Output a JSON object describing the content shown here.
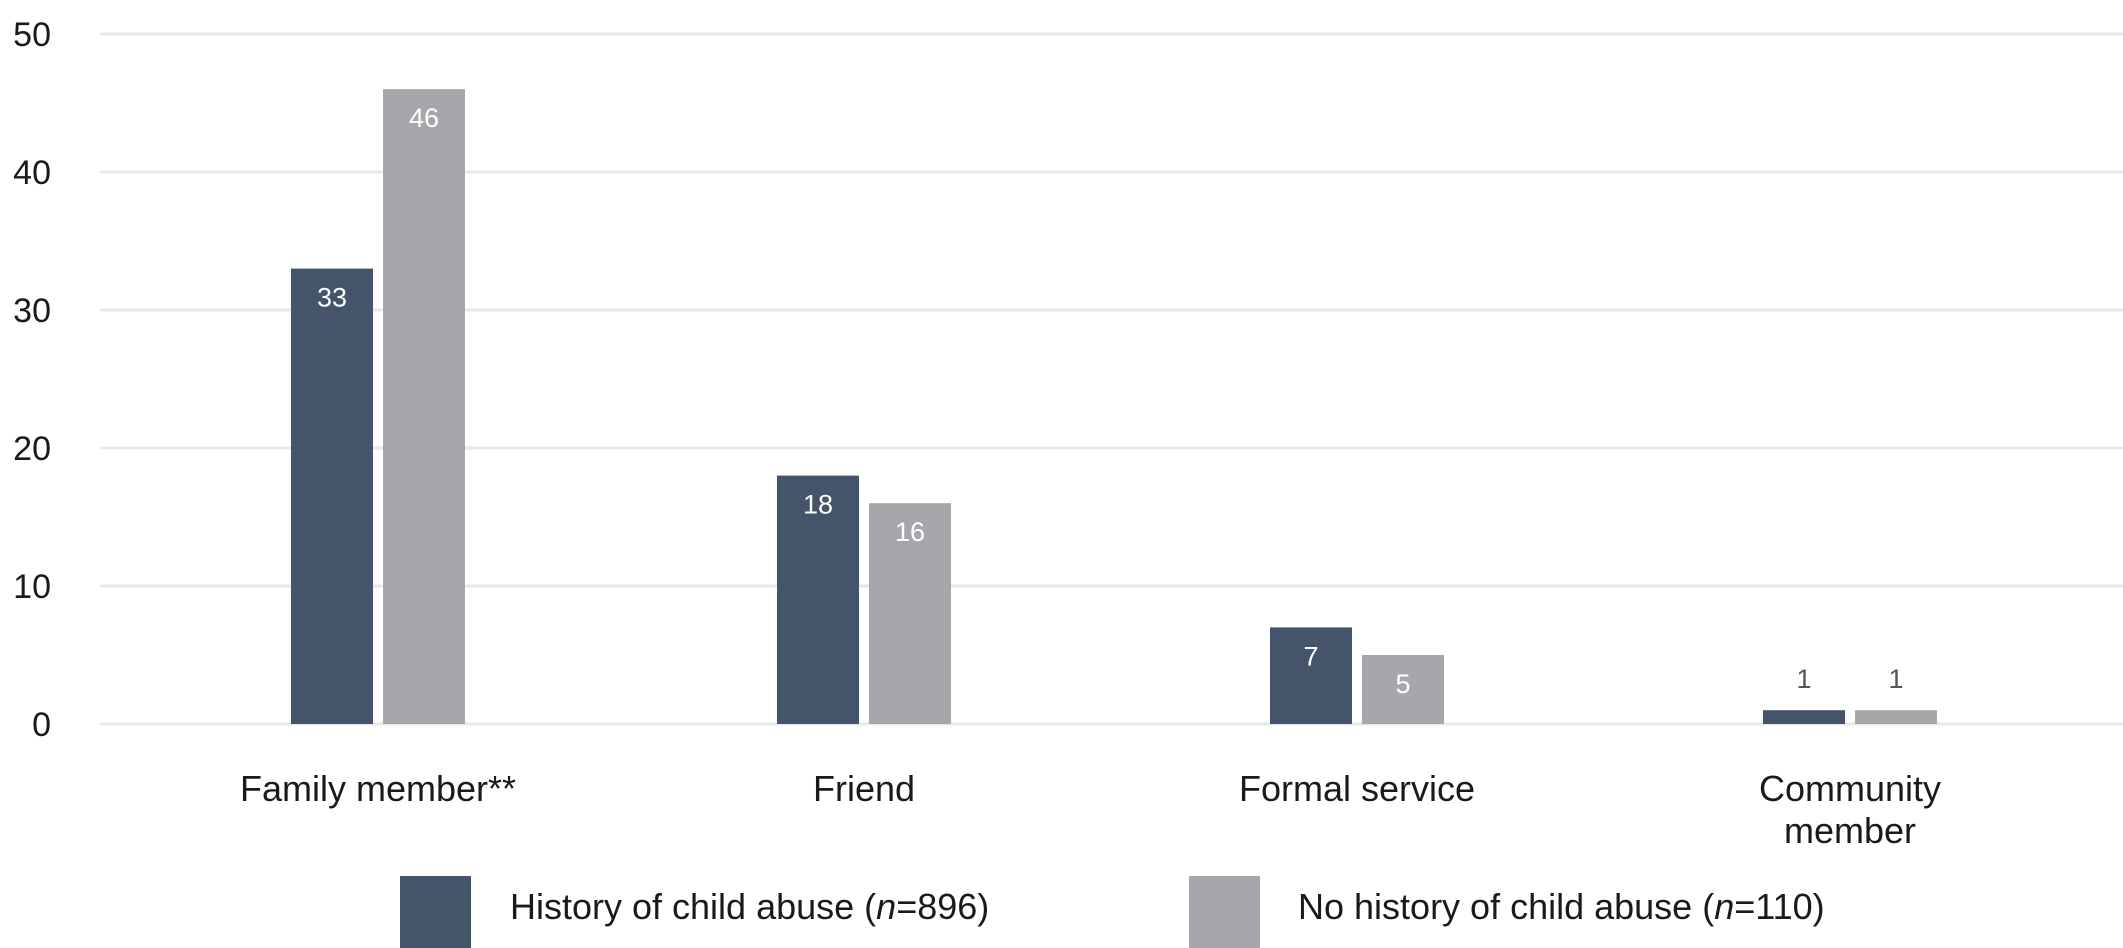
{
  "chart_data": {
    "type": "bar",
    "categories": [
      [
        "Family member**"
      ],
      [
        "Friend"
      ],
      [
        "Formal service"
      ],
      [
        "Community",
        "member"
      ]
    ],
    "series": [
      {
        "name": "History of child abuse (n=896)",
        "legend": {
          "prefix": "History of child abuse (",
          "italic": "n",
          "suffix": "=896)"
        },
        "color": "#44546a",
        "label_color_inside": "#ffffff",
        "values": [
          33,
          18,
          7,
          1
        ]
      },
      {
        "name": "No history of child abuse (n=110)",
        "legend": {
          "prefix": "No history of child abuse (",
          "italic": "n",
          "suffix": "=110)"
        },
        "color": "#a6a7aa",
        "label_color_inside": "#ffffff",
        "values": [
          46,
          16,
          5,
          1
        ]
      }
    ],
    "ylim": [
      0,
      50
    ],
    "yticks": [
      0,
      10,
      20,
      30,
      40,
      50
    ],
    "grid": true,
    "grid_color": "#e8e8e8",
    "outside_label_color": "#555555",
    "legend_position": "bottom",
    "title": "",
    "xlabel": "",
    "ylabel": ""
  }
}
